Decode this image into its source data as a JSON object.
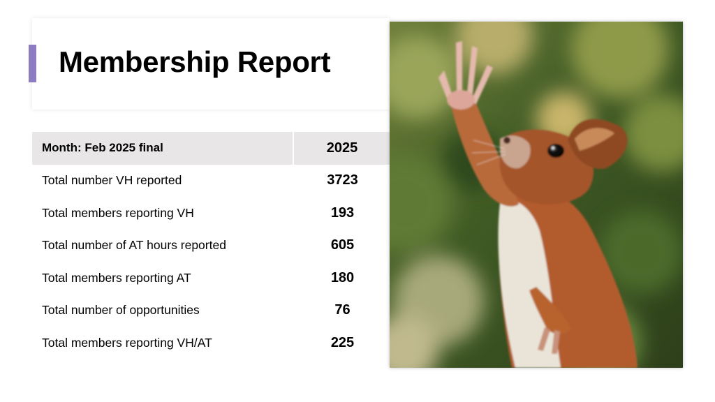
{
  "slide": {
    "title": "Membership Report",
    "accent_color": "#8e7cc3"
  },
  "table": {
    "header_label": "Month: Feb 2025 final",
    "header_year": "2025",
    "rows": [
      {
        "label": "Total number VH reported",
        "value": "3723"
      },
      {
        "label": "Total members reporting VH",
        "value": "193"
      },
      {
        "label": "Total number of AT hours reported",
        "value": "605"
      },
      {
        "label": "Total members reporting AT",
        "value": "180"
      },
      {
        "label": "Total number of opportunities",
        "value": "76"
      },
      {
        "label": "Total members reporting VH/AT",
        "value": "225"
      }
    ]
  },
  "image": {
    "subject": "red-squirrel-reaching-up-photo"
  }
}
